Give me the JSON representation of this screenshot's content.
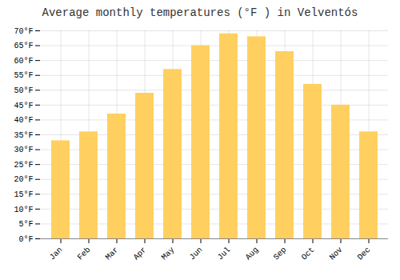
{
  "chart_data": {
    "type": "bar",
    "title": "Average monthly temperatures (°F ) in Velventós",
    "categories": [
      "Jan",
      "Feb",
      "Mar",
      "Apr",
      "May",
      "Jun",
      "Jul",
      "Aug",
      "Sep",
      "Oct",
      "Nov",
      "Dec"
    ],
    "values": [
      33,
      36,
      42,
      49,
      57,
      65,
      69,
      68,
      63,
      52,
      45,
      36
    ],
    "color": "#FFD060",
    "ylim": [
      0,
      70
    ],
    "yticks": [
      {
        "value": 0,
        "label": "0°F"
      },
      {
        "value": 5,
        "label": "5°F"
      },
      {
        "value": 10,
        "label": "10°F"
      },
      {
        "value": 15,
        "label": "15°F"
      },
      {
        "value": 20,
        "label": "20°F"
      },
      {
        "value": 25,
        "label": "25°F"
      },
      {
        "value": 30,
        "label": "30°F"
      },
      {
        "value": 35,
        "label": "35°F"
      },
      {
        "value": 40,
        "label": "40°F"
      },
      {
        "value": 45,
        "label": "45°F"
      },
      {
        "value": 50,
        "label": "50°F"
      },
      {
        "value": 55,
        "label": "55°F"
      },
      {
        "value": 60,
        "label": "60°F"
      },
      {
        "value": 65,
        "label": "65°F"
      },
      {
        "value": 70,
        "label": "70°F"
      }
    ],
    "grid": true
  }
}
